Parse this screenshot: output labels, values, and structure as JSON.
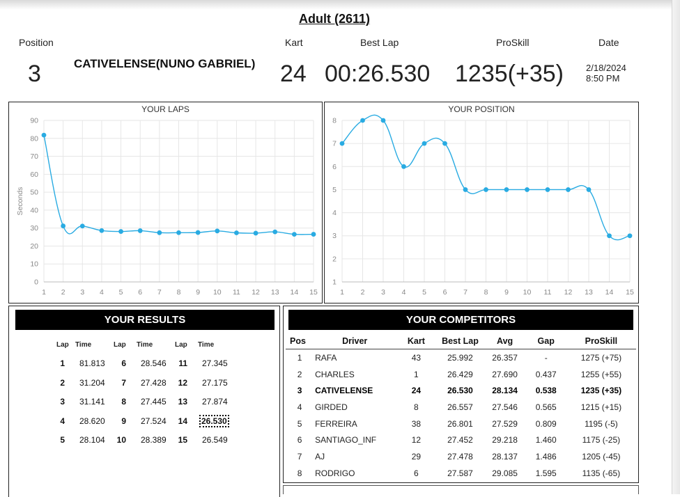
{
  "page_title": "Adult (2611)",
  "header": {
    "position_label": "Position",
    "kart_label": "Kart",
    "best_lap_label": "Best Lap",
    "proskill_label": "ProSkill",
    "date_label": "Date",
    "position_value": "3",
    "driver_name": "CATIVELENSE(NUNO GABRIEL)",
    "kart_value": "24",
    "best_lap_value": "00:26.530",
    "proskill_value": "1235(+35)",
    "date_value": "2/18/2024",
    "time_value": "8:50 PM"
  },
  "chart_data": [
    {
      "type": "line",
      "title": "YOUR LAPS",
      "ylabel": "Seconds",
      "xlabel": "",
      "x": [
        1,
        2,
        3,
        4,
        5,
        6,
        7,
        8,
        9,
        10,
        11,
        12,
        13,
        14,
        15
      ],
      "values": [
        81.813,
        31.204,
        31.141,
        28.62,
        28.104,
        28.546,
        27.428,
        27.445,
        27.524,
        28.389,
        27.345,
        27.175,
        27.874,
        26.53,
        26.549
      ],
      "ylim": [
        0,
        90
      ],
      "yticks": [
        0,
        10,
        20,
        30,
        40,
        50,
        60,
        70,
        80,
        90
      ],
      "grid": true,
      "color": "#29abe2"
    },
    {
      "type": "line",
      "title": "YOUR POSITION",
      "ylabel": "",
      "xlabel": "",
      "x": [
        1,
        2,
        3,
        4,
        5,
        6,
        7,
        8,
        9,
        10,
        11,
        12,
        13,
        14,
        15
      ],
      "values": [
        7,
        8,
        8,
        6,
        7,
        7,
        5,
        5,
        5,
        5,
        5,
        5,
        5,
        3,
        3
      ],
      "ylim": [
        1,
        8
      ],
      "yticks": [
        1,
        2,
        3,
        4,
        5,
        6,
        7,
        8
      ],
      "grid": true,
      "color": "#29abe2"
    }
  ],
  "results": {
    "title": "YOUR RESULTS",
    "lap_header": "Lap",
    "time_header": "Time",
    "best_lap": 14,
    "columns": [
      [
        {
          "lap": "1",
          "time": "81.813"
        },
        {
          "lap": "2",
          "time": "31.204"
        },
        {
          "lap": "3",
          "time": "31.141"
        },
        {
          "lap": "4",
          "time": "28.620"
        },
        {
          "lap": "5",
          "time": "28.104"
        }
      ],
      [
        {
          "lap": "6",
          "time": "28.546"
        },
        {
          "lap": "7",
          "time": "27.428"
        },
        {
          "lap": "8",
          "time": "27.445"
        },
        {
          "lap": "9",
          "time": "27.524"
        },
        {
          "lap": "10",
          "time": "28.389"
        }
      ],
      [
        {
          "lap": "11",
          "time": "27.345"
        },
        {
          "lap": "12",
          "time": "27.175"
        },
        {
          "lap": "13",
          "time": "27.874"
        },
        {
          "lap": "14",
          "time": "26.530"
        },
        {
          "lap": "15",
          "time": "26.549"
        }
      ]
    ]
  },
  "competitors": {
    "title": "YOUR COMPETITORS",
    "headers": [
      "Pos",
      "Driver",
      "Kart",
      "Best Lap",
      "Avg",
      "Gap",
      "ProSkill"
    ],
    "rows": [
      [
        "1",
        "RAFA",
        "43",
        "25.992",
        "26.357",
        "-",
        "1275 (+75)"
      ],
      [
        "2",
        "CHARLES",
        "1",
        "26.429",
        "27.690",
        "0.437",
        "1255 (+55)"
      ],
      [
        "3",
        "CATIVELENSE",
        "24",
        "26.530",
        "28.134",
        "0.538",
        "1235 (+35)"
      ],
      [
        "4",
        "GIRDED",
        "8",
        "26.557",
        "27.546",
        "0.565",
        "1215 (+15)"
      ],
      [
        "5",
        "FERREIRA",
        "38",
        "26.801",
        "27.529",
        "0.809",
        "1195 (-5)"
      ],
      [
        "6",
        "SANTIAGO_INF",
        "12",
        "27.452",
        "29.218",
        "1.460",
        "1175 (-25)"
      ],
      [
        "7",
        "AJ",
        "29",
        "27.478",
        "28.137",
        "1.486",
        "1205 (-45)"
      ],
      [
        "8",
        "RODRIGO",
        "6",
        "27.587",
        "29.085",
        "1.595",
        "1135 (-65)"
      ]
    ],
    "highlight_row": 2
  }
}
